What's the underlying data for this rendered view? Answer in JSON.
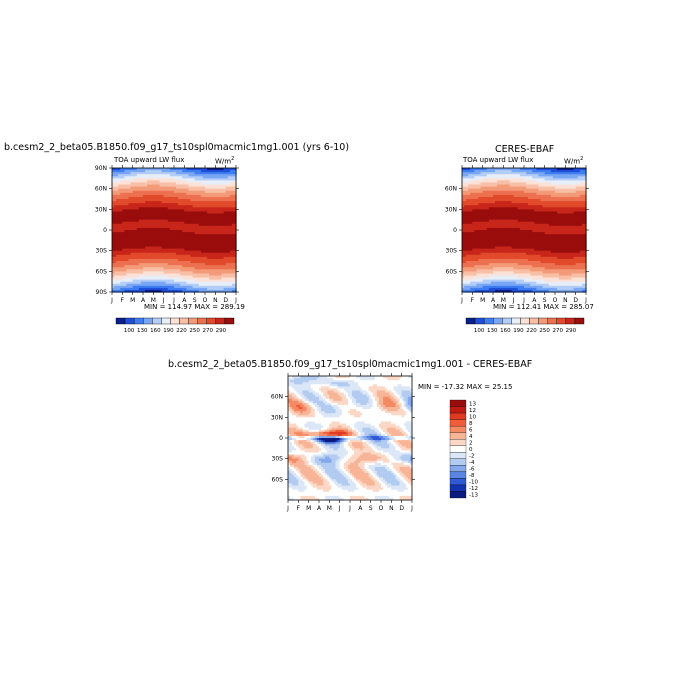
{
  "chart_data": [
    {
      "type": "heatmap",
      "title": "b.cesm2_2_beta05.B1850.f09_g17_ts10spl0macmic1mg1.001 (yrs 6-10)",
      "variable_label": "TOA upward LW flux",
      "units": "W/m",
      "units_superscript": "2",
      "x": [
        "J",
        "F",
        "M",
        "A",
        "M",
        "J",
        "J",
        "A",
        "S",
        "O",
        "N",
        "D",
        "J"
      ],
      "y_ticks": [
        "90N",
        "60N",
        "30N",
        "0",
        "30S",
        "60S",
        "90S"
      ],
      "stats": "MIN = 114.97  MAX = 289.19",
      "colorbar_labels": [
        "100",
        "130",
        "160",
        "190",
        "220",
        "250",
        "270",
        "290"
      ]
    },
    {
      "type": "heatmap",
      "title": "CERES-EBAF",
      "x": [
        "J",
        "F",
        "M",
        "A",
        "M",
        "J",
        "J",
        "A",
        "S",
        "O",
        "N",
        "D",
        "J"
      ],
      "y_ticks": [
        "60N",
        "30N",
        "0",
        "30S",
        "60S"
      ],
      "stats": "MIN = 112.41  MAX = 285.07",
      "colorbar_labels": [
        "100",
        "130",
        "160",
        "190",
        "220",
        "250",
        "270",
        "290"
      ]
    },
    {
      "type": "heatmap",
      "title": "b.cesm2_2_beta05.B1850.f09_g17_ts10spl0macmic1mg1.001 - CERES-EBAF",
      "x": [
        "J",
        "F",
        "M",
        "A",
        "M",
        "J",
        "J",
        "A",
        "S",
        "O",
        "N",
        "D",
        "J"
      ],
      "y_ticks": [
        "60N",
        "30N",
        "0",
        "30S",
        "60S"
      ],
      "stats": "MIN = -17.32  MAX =  25.15",
      "colorbar_labels": [
        "13",
        "12",
        "10",
        "8",
        "6",
        "4",
        "2",
        "0",
        "-2",
        "-4",
        "-6",
        "-8",
        "-10",
        "-12",
        "-13"
      ]
    }
  ],
  "colors": {
    "seq": [
      "#0a1f8c",
      "#1f4fd8",
      "#3f7ef2",
      "#79a6f5",
      "#b2cdf7",
      "#e8eef8",
      "#fbe1d6",
      "#f8bfa6",
      "#f39a78",
      "#ec7150",
      "#e24a2c",
      "#c8261a",
      "#9a0d0d"
    ],
    "div": [
      "#9a0d0d",
      "#c01a14",
      "#de3a22",
      "#ee5e3a",
      "#f48a64",
      "#f8b497",
      "#fbd7c6",
      "#ffffff",
      "#dbe6f7",
      "#b2cbf0",
      "#85a9ea",
      "#5a85e2",
      "#2f5ad4",
      "#1533b0",
      "#0a1a7e"
    ]
  }
}
